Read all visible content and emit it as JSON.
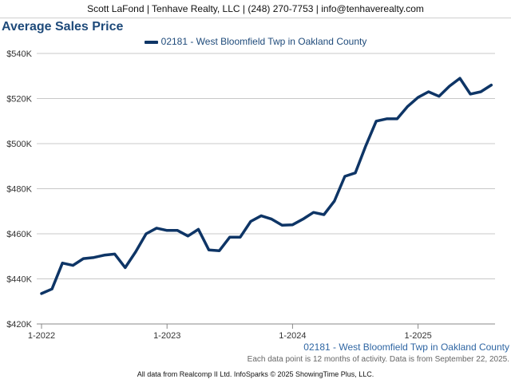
{
  "header": {
    "contact": "Scott LaFond | Tenhave Realty, LLC | (248) 270-7753 | info@tenhaverealty.com"
  },
  "chart_data": {
    "type": "line",
    "title": "Average Sales Price",
    "xlabel": "",
    "ylabel": "",
    "ylim": [
      420000,
      540000
    ],
    "y_ticks": [
      420000,
      440000,
      460000,
      480000,
      500000,
      520000,
      540000
    ],
    "y_tick_labels": [
      "$420K",
      "$440K",
      "$460K",
      "$480K",
      "$500K",
      "$520K",
      "$540K"
    ],
    "x_tick_labels": [
      "1-2022",
      "1-2023",
      "1-2024",
      "1-2025"
    ],
    "x_tick_index": [
      0,
      12,
      24,
      36
    ],
    "grid": true,
    "legend_position": "top-center",
    "color": "#0e3566",
    "series": [
      {
        "name": "02181 - West Bloomfield Twp in Oakland County",
        "x": [
          "1-2022",
          "2-2022",
          "3-2022",
          "4-2022",
          "5-2022",
          "6-2022",
          "7-2022",
          "8-2022",
          "9-2022",
          "10-2022",
          "11-2022",
          "12-2022",
          "1-2023",
          "2-2023",
          "3-2023",
          "4-2023",
          "5-2023",
          "6-2023",
          "7-2023",
          "8-2023",
          "9-2023",
          "10-2023",
          "11-2023",
          "12-2023",
          "1-2024",
          "2-2024",
          "3-2024",
          "4-2024",
          "5-2024",
          "6-2024",
          "7-2024",
          "8-2024",
          "9-2024",
          "10-2024",
          "11-2024",
          "12-2024",
          "1-2025",
          "2-2025",
          "3-2025",
          "4-2025",
          "5-2025",
          "6-2025",
          "7-2025",
          "8-2025"
        ],
        "values": [
          433500,
          435500,
          447000,
          446000,
          449000,
          449500,
          450500,
          451000,
          445000,
          452000,
          460000,
          462500,
          461500,
          461500,
          459000,
          462000,
          452800,
          452500,
          458500,
          458500,
          465500,
          468000,
          466500,
          463800,
          464000,
          466500,
          469500,
          468500,
          474500,
          485500,
          487000,
          499000,
          510000,
          511000,
          511000,
          516500,
          520500,
          523000,
          521000,
          525500,
          529000,
          522000,
          523000,
          526000
        ]
      }
    ]
  },
  "footer": {
    "series_label": "02181 - West Bloomfield Twp in Oakland County",
    "note": "Each data point is 12 months of activity. Data is from September 22, 2025.",
    "credit": "All data from Realcomp II Ltd. InfoSparks © 2025 ShowingTime Plus, LLC."
  }
}
